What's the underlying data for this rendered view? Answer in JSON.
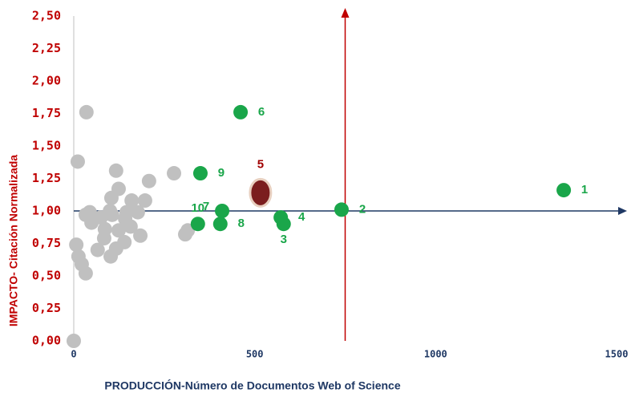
{
  "chart_data": {
    "type": "scatter",
    "xlabel": "PRODUCCIÓN-Número de Documentos Web of Science",
    "ylabel": "IMPACTO- Citación Normalizada",
    "xlim": [
      0,
      1500
    ],
    "ylim": [
      0,
      2.5
    ],
    "xticks": [
      0,
      500,
      1000,
      1500
    ],
    "yticks": [
      {
        "value": 0,
        "label": "0,00"
      },
      {
        "value": 0.25,
        "label": "0,25"
      },
      {
        "value": 0.5,
        "label": "0,50"
      },
      {
        "value": 0.75,
        "label": "0,75"
      },
      {
        "value": 1,
        "label": "1,00"
      },
      {
        "value": 1.25,
        "label": "1,25"
      },
      {
        "value": 1.5,
        "label": "1,50"
      },
      {
        "value": 1.75,
        "label": "1,75"
      },
      {
        "value": 2,
        "label": "2,00"
      },
      {
        "value": 2.25,
        "label": "2,25"
      },
      {
        "value": 2.5,
        "label": "2,50"
      }
    ],
    "hline": 1,
    "vline": 750,
    "series": [
      {
        "color": "#c0c0c0",
        "x": [
          35,
          11,
          117,
          208,
          277,
          124,
          104,
          160,
          197,
          44,
          33,
          49,
          100,
          75,
          106,
          86,
          84,
          142,
          146,
          177,
          124,
          140,
          184,
          117,
          102,
          66,
          7,
          13,
          22,
          33,
          315,
          308,
          0,
          157
        ],
        "values": [
          1.76,
          1.38,
          1.31,
          1.23,
          1.29,
          1.17,
          1.1,
          1.08,
          1.08,
          0.99,
          0.97,
          0.91,
          1.0,
          0.95,
          0.97,
          0.86,
          0.79,
          0.94,
          0.99,
          0.99,
          0.85,
          0.76,
          0.81,
          0.71,
          0.65,
          0.7,
          0.74,
          0.65,
          0.59,
          0.52,
          0.85,
          0.82,
          0,
          0.88
        ]
      },
      {
        "color": "#1aa64a",
        "labels": [
          "1",
          "2",
          "3",
          "4",
          "5",
          "6",
          "7",
          "8",
          "9",
          "10"
        ],
        "x": [
          1354,
          740,
          580,
          572,
          516,
          461,
          410,
          405,
          350,
          343
        ],
        "values": [
          1.16,
          1.01,
          0.9,
          0.95,
          1.14,
          1.76,
          1.0,
          0.9,
          1.29,
          0.9
        ]
      }
    ]
  }
}
